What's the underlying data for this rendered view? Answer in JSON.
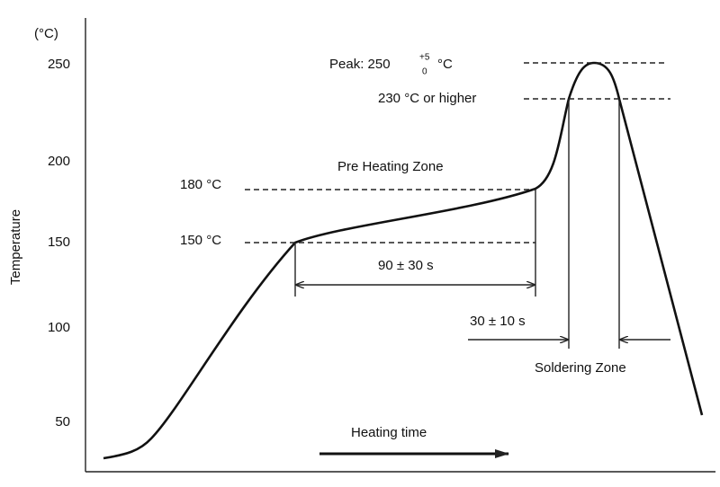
{
  "axis": {
    "unit": "(°C)",
    "title": "Temperature",
    "ticks": [
      "250",
      "200",
      "150",
      "100",
      "50"
    ]
  },
  "labels": {
    "peak": "Peak: 250",
    "peak_tolerance_upper": "+5",
    "peak_tolerance_lower": "0",
    "peak_unit": "°C",
    "soldering_threshold": "230 °C or higher",
    "preheat_zone": "Pre Heating Zone",
    "preheat_upper": "180 °C",
    "preheat_lower": "150 °C",
    "preheat_time": "90 ± 30 s",
    "soldering_time": "30 ± 10 s",
    "soldering_zone": "Soldering Zone",
    "x_axis": "Heating time"
  }
}
